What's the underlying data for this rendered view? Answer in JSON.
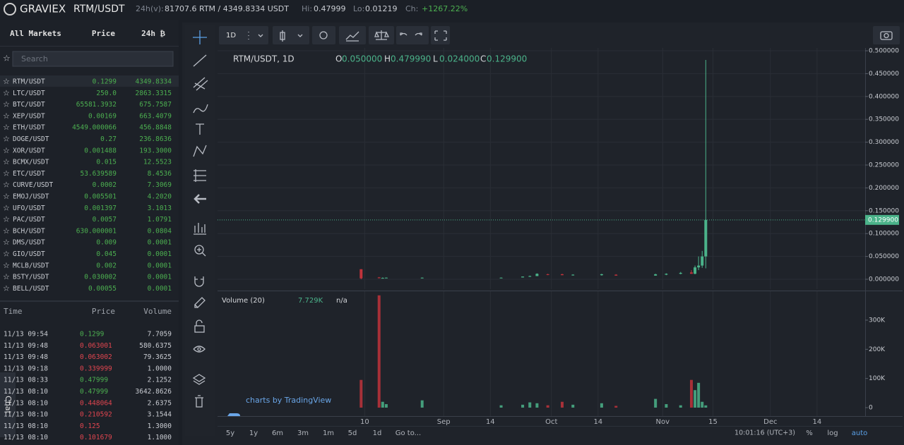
{
  "header": {
    "logo": "GRAVIEX",
    "pair": "RTM/USDT",
    "vol_label": "24h(v):",
    "vol": "81707.6 RTM / 4349.8334 USDT",
    "hi_label": "Hi:",
    "hi": "0.47999",
    "lo_label": "Lo:",
    "lo": "0.01219",
    "ch_label": "Ch:",
    "ch": "+1267.22%"
  },
  "markets": {
    "headers": [
      "All Markets",
      "Price",
      "24h ₿"
    ],
    "search_placeholder": "Search",
    "rows": [
      [
        "RTM/USDT",
        "0.1299",
        "4349.8334"
      ],
      [
        "LTC/USDT",
        "250.0",
        "2863.3315"
      ],
      [
        "BTC/USDT",
        "65581.3932",
        "675.7587"
      ],
      [
        "XEP/USDT",
        "0.00169",
        "663.4079"
      ],
      [
        "ETH/USDT",
        "4549.000066",
        "456.8848"
      ],
      [
        "DOGE/USDT",
        "0.27",
        "236.8636"
      ],
      [
        "XOR/USDT",
        "0.001488",
        "193.3000"
      ],
      [
        "BCMX/USDT",
        "0.015",
        "12.5523"
      ],
      [
        "ETC/USDT",
        "53.639589",
        "8.4536"
      ],
      [
        "CURVE/USDT",
        "0.0002",
        "7.3069"
      ],
      [
        "EMOJ/USDT",
        "0.005501",
        "4.2020"
      ],
      [
        "UFO/USDT",
        "0.001397",
        "3.1013"
      ],
      [
        "PAC/USDT",
        "0.0057",
        "1.0791"
      ],
      [
        "BCH/USDT",
        "630.000001",
        "0.0804"
      ],
      [
        "DMS/USDT",
        "0.009",
        "0.0001"
      ],
      [
        "GIO/USDT",
        "0.045",
        "0.0001"
      ],
      [
        "MCLB/USDT",
        "0.002",
        "0.0001"
      ],
      [
        "BSTY/USDT",
        "0.030002",
        "0.0001"
      ],
      [
        "BELL/USDT",
        "0.00055",
        "0.0001"
      ]
    ]
  },
  "trades": {
    "headers": [
      "Time",
      "Price",
      "Volume"
    ],
    "rows": [
      {
        "time": "11/13 09:54",
        "price": "0.1299",
        "volume": "7.7059",
        "color": "#4caf50"
      },
      {
        "time": "11/13 09:48",
        "price": "0.063001",
        "volume": "580.6375",
        "color": "#e0454f"
      },
      {
        "time": "11/13 09:48",
        "price": "0.063002",
        "volume": "79.3625",
        "color": "#e0454f"
      },
      {
        "time": "11/13 09:18",
        "price": "0.339999",
        "volume": "1.0000",
        "color": "#e0454f"
      },
      {
        "time": "11/13 08:33",
        "price": "0.47999",
        "volume": "2.1252",
        "color": "#4caf50"
      },
      {
        "time": "11/13 08:10",
        "price": "0.47999",
        "volume": "3642.8626",
        "color": "#4caf50"
      },
      {
        "time": "11/13 08:10",
        "price": "0.448064",
        "volume": "2.6375",
        "color": "#e0454f"
      },
      {
        "time": "11/13 08:10",
        "price": "0.210592",
        "volume": "3.1544",
        "color": "#e0454f"
      },
      {
        "time": "11/13 08:10",
        "price": "0.125",
        "volume": "1.3000",
        "color": "#e0454f"
      },
      {
        "time": "11/13 08:10",
        "price": "0.101679",
        "volume": "1.1000",
        "color": "#e0454f"
      }
    ]
  },
  "chat": "Chat",
  "chart": {
    "interval": "1D",
    "legend": {
      "symbol": "RTM/USDT, 1D",
      "o_label": "O",
      "o": "0.050000",
      "h_label": "H",
      "h": "0.479990",
      "l_label": "L",
      "l": "0.024000",
      "c_label": "C",
      "c": "0.129900"
    },
    "volume_legend": {
      "name": "Volume (20)",
      "value": "7.729K",
      "ma": "n/a"
    },
    "watermark": "charts by TradingView",
    "up_color": "#4bb38a",
    "down_color": "#c0333b",
    "last_price": 0.1299,
    "last_price_label": "0.129900",
    "xlim": [
      -41,
      139.4
    ],
    "xticks": [
      {
        "value": 0,
        "label": "10"
      },
      {
        "value": 22,
        "label": "Sep"
      },
      {
        "value": 35,
        "label": "14"
      },
      {
        "value": 52,
        "label": "Oct"
      },
      {
        "value": 65,
        "label": "14"
      },
      {
        "value": 83,
        "label": "Nov"
      },
      {
        "value": 97,
        "label": "15"
      },
      {
        "value": 113,
        "label": "Dec"
      },
      {
        "value": 126,
        "label": "14"
      }
    ],
    "ylim": [
      -0.0216,
      0.5062
    ],
    "yticks": [
      {
        "value": 0,
        "label": "0.000000"
      },
      {
        "value": 0.05,
        "label": "0.050000"
      },
      {
        "value": 0.1,
        "label": "0.100000"
      },
      {
        "value": 0.15,
        "label": "0.150000"
      },
      {
        "value": 0.2,
        "label": "0.200000"
      },
      {
        "value": 0.25,
        "label": "0.250000"
      },
      {
        "value": 0.3,
        "label": "0.300000"
      },
      {
        "value": 0.35,
        "label": "0.350000"
      },
      {
        "value": 0.4,
        "label": "0.400000"
      },
      {
        "value": 0.45,
        "label": "0.450000"
      },
      {
        "value": 0.5,
        "label": "0.500000"
      }
    ],
    "vlim": [
      -29000,
      399000
    ],
    "vticks": [
      {
        "value": 0,
        "label": "0"
      },
      {
        "value": 100000,
        "label": "100K"
      },
      {
        "value": 200000,
        "label": "200K"
      },
      {
        "value": 300000,
        "label": "300K"
      }
    ],
    "candles": [
      {
        "x": -1,
        "open": 0.022,
        "high": 0.022,
        "low": 0,
        "close": 0.002,
        "volume": 95000
      },
      {
        "x": 4,
        "open": 0.004,
        "high": 0.005,
        "low": 0.002,
        "close": 0.003,
        "volume": 385000
      },
      {
        "x": 5,
        "open": 0.003,
        "high": 0.004,
        "low": 0.002,
        "close": 0.003,
        "volume": 20000
      },
      {
        "x": 6,
        "open": 0.003,
        "high": 0.004,
        "low": 0.003,
        "close": 0.0035,
        "volume": 12000
      },
      {
        "x": 16,
        "open": 0.003,
        "high": 0.004,
        "low": 0.002,
        "close": 0.0035,
        "volume": 25000
      },
      {
        "x": 38,
        "open": 0.003,
        "high": 0.004,
        "low": 0.003,
        "close": 0.0035,
        "volume": 8000
      },
      {
        "x": 44,
        "open": 0.004,
        "high": 0.006,
        "low": 0.004,
        "close": 0.006,
        "volume": 10000
      },
      {
        "x": 46,
        "open": 0.006,
        "high": 0.008,
        "low": 0.005,
        "close": 0.007,
        "volume": 18000
      },
      {
        "x": 48,
        "open": 0.007,
        "high": 0.013,
        "low": 0.007,
        "close": 0.012,
        "volume": 15000
      },
      {
        "x": 51,
        "open": 0.011,
        "high": 0.012,
        "low": 0.009,
        "close": 0.01,
        "volume": 8000
      },
      {
        "x": 55,
        "open": 0.011,
        "high": 0.012,
        "low": 0.009,
        "close": 0.009,
        "volume": 20000
      },
      {
        "x": 58,
        "open": 0.009,
        "high": 0.011,
        "low": 0.008,
        "close": 0.01,
        "volume": 10000
      },
      {
        "x": 66,
        "open": 0.009,
        "high": 0.012,
        "low": 0.008,
        "close": 0.011,
        "volume": 15000
      },
      {
        "x": 70,
        "open": 0.01,
        "high": 0.011,
        "low": 0.008,
        "close": 0.008,
        "volume": 6000
      },
      {
        "x": 81,
        "open": 0.008,
        "high": 0.012,
        "low": 0.008,
        "close": 0.011,
        "volume": 30000
      },
      {
        "x": 84,
        "open": 0.01,
        "high": 0.013,
        "low": 0.009,
        "close": 0.012,
        "volume": 12000
      },
      {
        "x": 88,
        "open": 0.012,
        "high": 0.016,
        "low": 0.011,
        "close": 0.014,
        "volume": 8000
      },
      {
        "x": 91,
        "open": 0.015,
        "high": 0.02,
        "low": 0.012,
        "close": 0.012,
        "volume": 95000
      },
      {
        "x": 92,
        "open": 0.012,
        "high": 0.03,
        "low": 0.011,
        "close": 0.026,
        "volume": 60000
      },
      {
        "x": 93,
        "open": 0.026,
        "high": 0.05,
        "low": 0.02,
        "close": 0.03,
        "volume": 85000
      },
      {
        "x": 94,
        "open": 0.03,
        "high": 0.062,
        "low": 0.025,
        "close": 0.05,
        "volume": 20000
      },
      {
        "x": 95,
        "open": 0.05,
        "high": 0.47999,
        "low": 0.024,
        "close": 0.1299,
        "volume": 7729
      }
    ],
    "ranges": [
      "5y",
      "1y",
      "6m",
      "3m",
      "1m",
      "5d",
      "1d",
      "Go to..."
    ],
    "clock": "10:01:16 (UTC+3)",
    "percent": "%",
    "log": "log",
    "auto": "auto"
  }
}
